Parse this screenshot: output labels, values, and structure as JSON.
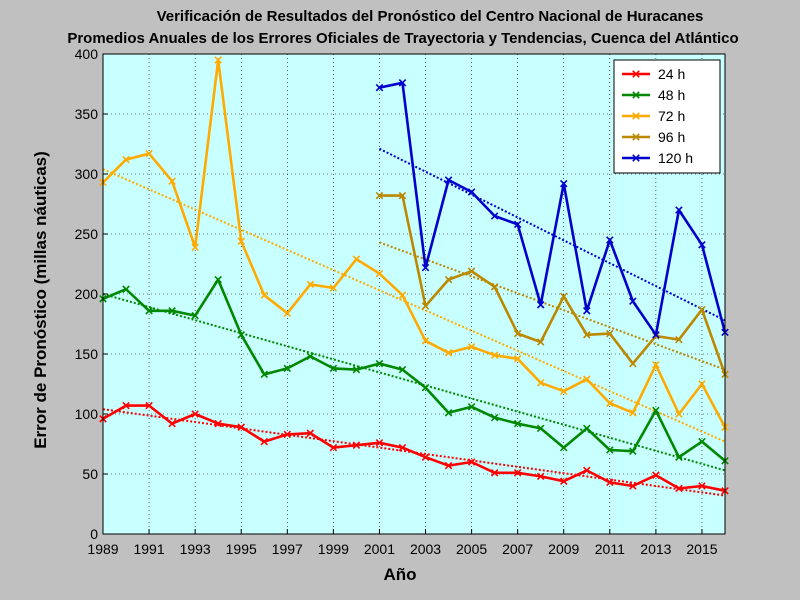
{
  "chart_data": {
    "type": "line",
    "title": "Verificación de Resultados del Pronóstico del Centro Nacional de Huracanes",
    "subtitle": "Promedios Anuales de los Errores Oficiales de Trayectoria y Tendencias, Cuenca del Atlántico",
    "xlabel": "Año",
    "ylabel": "Error de Pronóstico (millas náuticas)",
    "xlim": [
      1989,
      2016
    ],
    "ylim": [
      0,
      400
    ],
    "xticks": [
      "1989",
      "1991",
      "1993",
      "1995",
      "1997",
      "1999",
      "2001",
      "2003",
      "2005",
      "2007",
      "2009",
      "2011",
      "2013",
      "2015"
    ],
    "yticks": [
      "0",
      "50",
      "100",
      "150",
      "200",
      "250",
      "300",
      "350",
      "400"
    ],
    "grid": true,
    "legend_position": "top-right",
    "background": "#c8ffff",
    "series": [
      {
        "name": "24 h",
        "color": "#ff0000",
        "x": [
          1989,
          1990,
          1991,
          1992,
          1993,
          1994,
          1995,
          1996,
          1997,
          1998,
          1999,
          2000,
          2001,
          2002,
          2003,
          2004,
          2005,
          2006,
          2007,
          2008,
          2009,
          2010,
          2011,
          2012,
          2013,
          2014,
          2015,
          2016
        ],
        "values": [
          96,
          107,
          107,
          92,
          100,
          92,
          89,
          77,
          83,
          84,
          72,
          74,
          76,
          72,
          64,
          57,
          60,
          51,
          51,
          48,
          44,
          53,
          43,
          40,
          49,
          38,
          40,
          36
        ],
        "trend": [
          104,
          32
        ]
      },
      {
        "name": "48 h",
        "color": "#008800",
        "x": [
          1989,
          1990,
          1991,
          1992,
          1993,
          1994,
          1995,
          1996,
          1997,
          1998,
          1999,
          2000,
          2001,
          2002,
          2003,
          2004,
          2005,
          2006,
          2007,
          2008,
          2009,
          2010,
          2011,
          2012,
          2013,
          2014,
          2015,
          2016
        ],
        "values": [
          196,
          204,
          186,
          186,
          182,
          212,
          166,
          133,
          138,
          148,
          138,
          137,
          142,
          137,
          122,
          101,
          106,
          97,
          92,
          88,
          72,
          88,
          70,
          69,
          103,
          64,
          77,
          61
        ],
        "trend": [
          200,
          53
        ]
      },
      {
        "name": "72 h",
        "color": "#ffaa00",
        "x": [
          1989,
          1990,
          1991,
          1992,
          1993,
          1994,
          1995,
          1996,
          1997,
          1998,
          1999,
          2000,
          2001,
          2002,
          2003,
          2004,
          2005,
          2006,
          2007,
          2008,
          2009,
          2010,
          2011,
          2012,
          2013,
          2014,
          2015,
          2016
        ],
        "values": [
          293,
          312,
          317,
          294,
          239,
          395,
          244,
          199,
          184,
          208,
          205,
          229,
          217,
          199,
          161,
          151,
          156,
          149,
          146,
          126,
          119,
          129,
          109,
          101,
          141,
          100,
          125,
          89
        ],
        "trend": [
          304,
          77
        ]
      },
      {
        "name": "96 h",
        "color": "#bb8800",
        "x": [
          2001,
          2002,
          2003,
          2004,
          2005,
          2006,
          2007,
          2008,
          2009,
          2010,
          2011,
          2012,
          2013,
          2014,
          2015,
          2016
        ],
        "values": [
          282,
          282,
          190,
          212,
          219,
          206,
          167,
          160,
          198,
          166,
          167,
          142,
          165,
          162,
          187,
          133
        ],
        "trend": [
          243,
          137
        ]
      },
      {
        "name": "120 h",
        "color": "#0000cc",
        "x": [
          2001,
          2002,
          2003,
          2004,
          2005,
          2006,
          2007,
          2008,
          2009,
          2010,
          2011,
          2012,
          2013,
          2014,
          2015,
          2016
        ],
        "values": [
          372,
          376,
          222,
          295,
          285,
          265,
          258,
          191,
          292,
          186,
          245,
          194,
          166,
          270,
          241,
          168
        ],
        "trend": [
          321,
          178
        ]
      }
    ]
  }
}
